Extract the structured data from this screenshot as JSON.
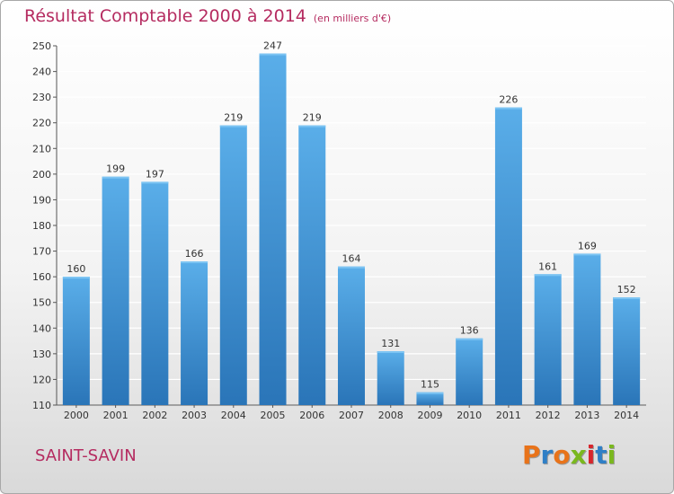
{
  "title": "Résultat Comptable 2000 à 2014",
  "subtitle": "(en milliers d'€)",
  "commune": "SAINT-SAVIN",
  "logo": {
    "text": "Proxiti",
    "letter_colors": [
      "#e8731a",
      "#2f7fc6",
      "#e8731a",
      "#7ab81e",
      "#d7262d",
      "#2f7fc6",
      "#7ab81e"
    ]
  },
  "colors": {
    "bar_top": "#5aaee9",
    "bar_bottom": "#2a75b8",
    "title": "#b52b60",
    "grid": "#ffffff",
    "text": "#333333"
  },
  "chart_data": {
    "type": "bar",
    "categories": [
      "2000",
      "2001",
      "2002",
      "2003",
      "2004",
      "2005",
      "2006",
      "2007",
      "2008",
      "2009",
      "2010",
      "2011",
      "2012",
      "2013",
      "2014"
    ],
    "values": [
      160,
      199,
      197,
      166,
      219,
      247,
      219,
      164,
      131,
      115,
      136,
      226,
      161,
      169,
      152
    ],
    "data_labels": [
      "160",
      "199",
      "197",
      "166",
      "219",
      "247",
      "219",
      "164",
      "131",
      "115",
      "136",
      "226",
      "161",
      "169",
      "152"
    ],
    "yticks": [
      110,
      120,
      130,
      140,
      150,
      160,
      170,
      180,
      190,
      200,
      210,
      220,
      230,
      240,
      250
    ],
    "ylim": [
      110,
      250
    ],
    "grid": true,
    "legend": "none"
  }
}
